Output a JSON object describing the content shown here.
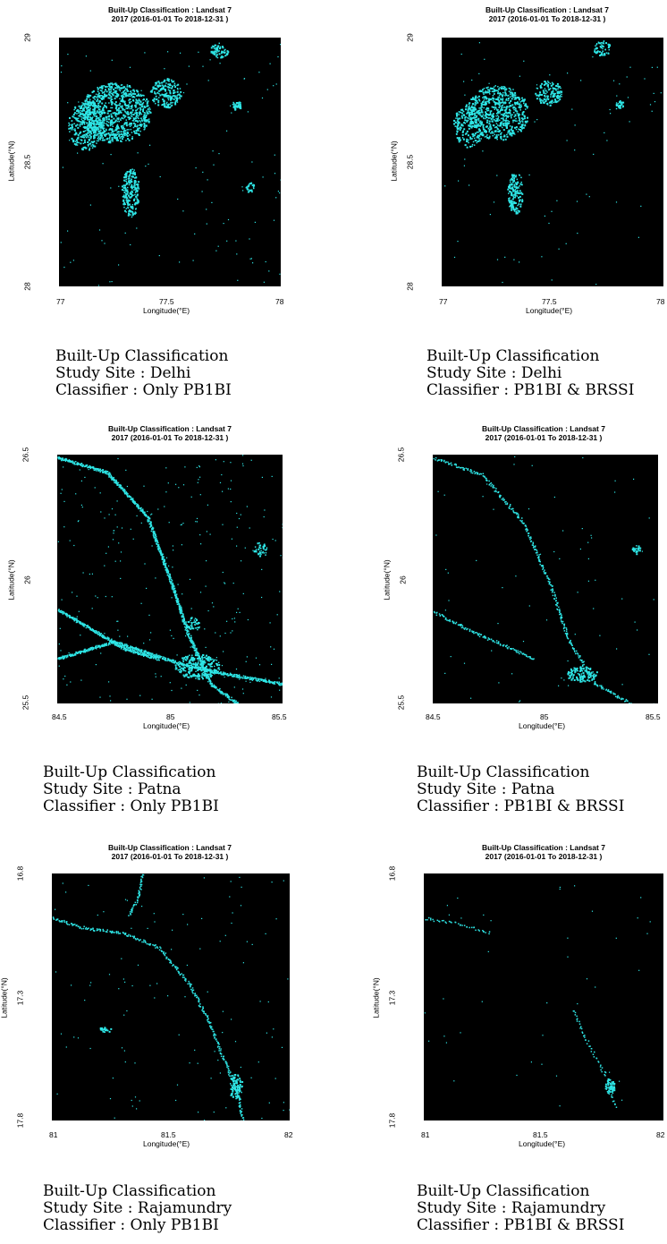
{
  "colors": {
    "built_up": "#2ee6e6",
    "background": "#000000"
  },
  "panels": [
    {
      "title": "Built-Up Classification : Landsat 7\n2017 (2016-01-01 To 2018-12-31 )",
      "xlabel": "Longitude(°E)",
      "ylabel": "Latitude(°N)",
      "xticks": [
        "77",
        "77.5",
        "78"
      ],
      "yticks": [
        "29",
        "28.5",
        "28"
      ],
      "caption": [
        "Built-Up Classification",
        "Study Site : Delhi",
        "Classifier : Only PB1BI"
      ]
    },
    {
      "title": "Built-Up Classification : Landsat 7\n2017 (2016-01-01 To 2018-12-31 )",
      "xlabel": "Longitude(°E)",
      "ylabel": "Latitude(°N)",
      "xticks": [
        "77",
        "77.5",
        "78"
      ],
      "yticks": [
        "29",
        "28.5",
        "28"
      ],
      "caption": [
        "Built-Up Classification",
        "Study Site : Delhi",
        "Classifier : PB1BI & BRSSI"
      ]
    },
    {
      "title": "Built-Up Classification : Landsat 7\n2017 (2016-01-01 To 2018-12-31 )",
      "xlabel": "Longitude(°E)",
      "ylabel": "Latitude(°N)",
      "xticks": [
        "84.5",
        "85",
        "85.5"
      ],
      "yticks": [
        "26.5",
        "26",
        "25.5"
      ],
      "caption": [
        "Built-Up Classification",
        "Study Site : Patna",
        "Classifier : Only PB1BI"
      ]
    },
    {
      "title": "Built-Up Classification : Landsat 7\n2017 (2016-01-01 To 2018-12-31 )",
      "xlabel": "Longitude(°E)",
      "ylabel": "Latitude(°N)",
      "xticks": [
        "84.5",
        "85",
        "85.5"
      ],
      "yticks": [
        "26.5",
        "26",
        "25.5"
      ],
      "caption": [
        "Built-Up Classification",
        "Study Site : Patna",
        "Classifier : PB1BI & BRSSI"
      ]
    },
    {
      "title": "Built-Up Classification : Landsat 7\n2017 (2016-01-01 To 2018-12-31 )",
      "xlabel": "Longitude(°E)",
      "ylabel": "Latitude(°N)",
      "xticks": [
        "81",
        "81.5",
        "82"
      ],
      "yticks": [
        "16.8",
        "17.3",
        "17.8"
      ],
      "caption": [
        "Built-Up Classification",
        "Study Site : Rajamundry",
        "Classifier : Only PB1BI"
      ]
    },
    {
      "title": "Built-Up Classification : Landsat 7\n2017 (2016-01-01 To 2018-12-31 )",
      "xlabel": "Longitude(°E)",
      "ylabel": "Latitude(°N)",
      "xticks": [
        "81",
        "81.5",
        "82"
      ],
      "yticks": [
        "16.8",
        "17.3",
        "17.8"
      ],
      "caption": [
        "Built-Up Classification",
        "Study Site : Rajamundry",
        "Classifier : PB1BI & BRSSI"
      ]
    }
  ]
}
